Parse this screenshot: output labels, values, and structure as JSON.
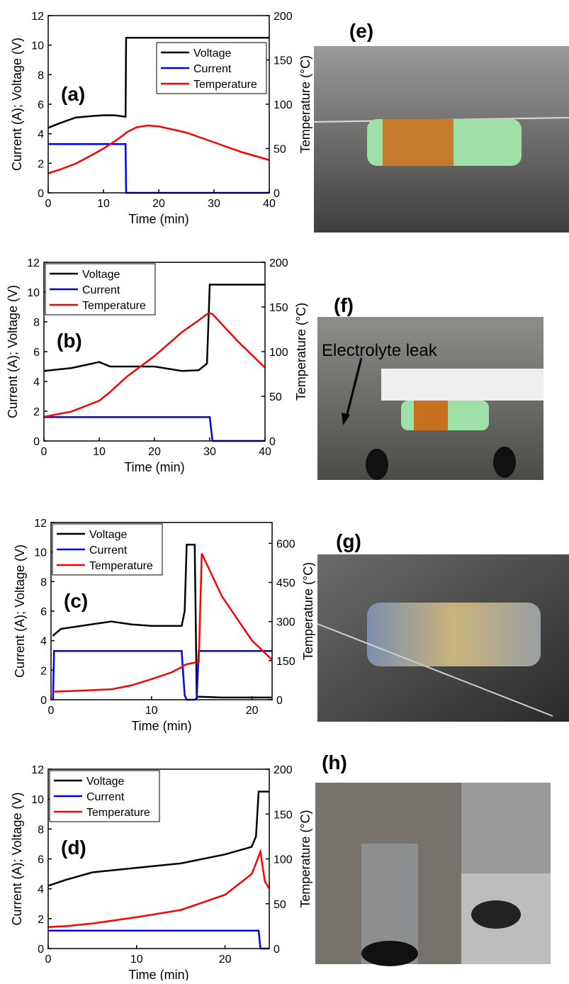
{
  "chart_data": [
    {
      "type": "line",
      "panel_label": "(a)",
      "x_label": "Time (min)",
      "y_label": "Current (A); Voltage (V)",
      "y2_label": "Temperature (°C)",
      "xlim": [
        0,
        40
      ],
      "xticks": [
        0,
        10,
        20,
        30,
        40
      ],
      "ylim": [
        0,
        12
      ],
      "yticks": [
        0,
        2,
        4,
        6,
        8,
        10,
        12
      ],
      "y2lim": [
        0,
        200
      ],
      "y2ticks": [
        0,
        50,
        100,
        150,
        200
      ],
      "legend": "upper right",
      "x": [
        0,
        2,
        5,
        8,
        10,
        12,
        14,
        14.1,
        16,
        18,
        20,
        25,
        30,
        35,
        40
      ],
      "series": [
        {
          "name": "Voltage",
          "color": "#000000",
          "values": [
            4.4,
            4.7,
            5.1,
            5.2,
            5.25,
            5.25,
            5.15,
            10.5,
            10.5,
            10.5,
            10.5,
            10.5,
            10.5,
            10.5,
            10.5
          ]
        },
        {
          "name": "Current",
          "color": "#0000ff",
          "values": [
            3.3,
            3.3,
            3.3,
            3.3,
            3.3,
            3.3,
            3.3,
            0,
            0,
            0,
            0,
            0,
            0,
            0,
            0
          ]
        },
        {
          "name": "Temperature",
          "color": "#ff0000",
          "axis": "y2",
          "values": [
            22,
            26,
            33,
            43,
            50,
            58,
            67,
            68,
            74,
            76,
            75,
            68,
            57,
            46,
            37
          ]
        }
      ]
    },
    {
      "type": "line",
      "panel_label": "(b)",
      "x_label": "Time (min)",
      "y_label": "Current (A); Voltage (V)",
      "y2_label": "Temperature (°C)",
      "xlim": [
        0,
        40
      ],
      "xticks": [
        0,
        10,
        20,
        30,
        40
      ],
      "ylim": [
        0,
        12
      ],
      "yticks": [
        0,
        2,
        4,
        6,
        8,
        10,
        12
      ],
      "y2lim": [
        0,
        200
      ],
      "y2ticks": [
        0,
        50,
        100,
        150,
        200
      ],
      "legend": "upper left",
      "x": [
        0,
        5,
        10,
        12,
        15,
        20,
        25,
        28,
        29.5,
        30,
        30.5,
        35,
        40
      ],
      "series": [
        {
          "name": "Voltage",
          "color": "#000000",
          "values": [
            4.7,
            4.9,
            5.3,
            5.0,
            5.0,
            5.0,
            4.7,
            4.75,
            5.2,
            10.5,
            10.5,
            10.5,
            10.5
          ]
        },
        {
          "name": "Current",
          "color": "#0000ff",
          "values": [
            1.6,
            1.6,
            1.6,
            1.6,
            1.6,
            1.6,
            1.6,
            1.6,
            1.6,
            1.6,
            0,
            0,
            0
          ]
        },
        {
          "name": "Temperature",
          "color": "#ff0000",
          "axis": "y2",
          "values": [
            27,
            33,
            45,
            55,
            72,
            95,
            122,
            135,
            142,
            143,
            142,
            112,
            82
          ]
        }
      ]
    },
    {
      "type": "line",
      "panel_label": "(c)",
      "x_label": "Time (min)",
      "y_label": "Current (A); Voltage (V)",
      "y2_label": "Temperature (°C)",
      "xlim": [
        0,
        22
      ],
      "xticks": [
        0,
        10,
        20
      ],
      "ylim": [
        0,
        12
      ],
      "yticks": [
        0,
        2,
        4,
        6,
        8,
        10,
        12
      ],
      "y2lim": [
        0,
        680
      ],
      "y2ticks": [
        0,
        150,
        300,
        450,
        600
      ],
      "legend": "upper left",
      "x": [
        0.2,
        0.3,
        1,
        3,
        6,
        8,
        10,
        12,
        13,
        13.3,
        13.5,
        14,
        14.3,
        14.5,
        14.7,
        15,
        17,
        20,
        22
      ],
      "series": [
        {
          "name": "Voltage",
          "color": "#000000",
          "values": [
            4.3,
            4.4,
            4.8,
            5.0,
            5.3,
            5.1,
            5.0,
            5.0,
            5.0,
            6.0,
            10.5,
            10.5,
            10.5,
            0.2,
            0.2,
            0.2,
            0.15,
            0.15,
            0.15
          ]
        },
        {
          "name": "Current",
          "color": "#0000ff",
          "values": [
            0,
            3.3,
            3.3,
            3.3,
            3.3,
            3.3,
            3.3,
            3.3,
            3.3,
            0.3,
            0,
            0,
            0,
            0.1,
            3.3,
            3.3,
            3.3,
            3.3,
            3.3
          ]
        },
        {
          "name": "Temperature",
          "color": "#ff0000",
          "axis": "y2",
          "values": [
            31,
            31,
            32,
            35,
            40,
            55,
            79,
            105,
            125,
            133,
            136,
            140,
            142,
            142,
            143,
            561,
            397,
            227,
            153
          ]
        }
      ]
    },
    {
      "type": "line",
      "panel_label": "(d)",
      "x_label": "Time (min)",
      "y_label": "Current (A); Voltage (V)",
      "y2_label": "Temperature (°C)",
      "xlim": [
        0,
        25
      ],
      "xticks": [
        0,
        10,
        20
      ],
      "ylim": [
        0,
        12
      ],
      "yticks": [
        0,
        2,
        4,
        6,
        8,
        10,
        12
      ],
      "y2lim": [
        0,
        200
      ],
      "y2ticks": [
        0,
        50,
        100,
        150,
        200
      ],
      "legend": "upper left",
      "x": [
        0,
        2,
        5,
        10,
        15,
        20,
        23,
        23.5,
        23.8,
        24,
        24.5,
        25
      ],
      "series": [
        {
          "name": "Voltage",
          "color": "#000000",
          "values": [
            4.2,
            4.6,
            5.1,
            5.4,
            5.7,
            6.3,
            6.8,
            7.5,
            10.5,
            10.5,
            10.5,
            10.5
          ]
        },
        {
          "name": "Current",
          "color": "#0000ff",
          "values": [
            1.2,
            1.2,
            1.2,
            1.2,
            1.2,
            1.2,
            1.2,
            1.2,
            1.2,
            0,
            0,
            0
          ]
        },
        {
          "name": "Temperature",
          "color": "#ff0000",
          "axis": "y2",
          "values": [
            24,
            25,
            28,
            35,
            43,
            60,
            83,
            95,
            103,
            108,
            75,
            67
          ]
        }
      ]
    }
  ],
  "photos": [
    {
      "label": "(e)"
    },
    {
      "label": "(f)",
      "annotation": "Electrolyte leak"
    },
    {
      "label": "(g)"
    },
    {
      "label": "(h)"
    }
  ]
}
